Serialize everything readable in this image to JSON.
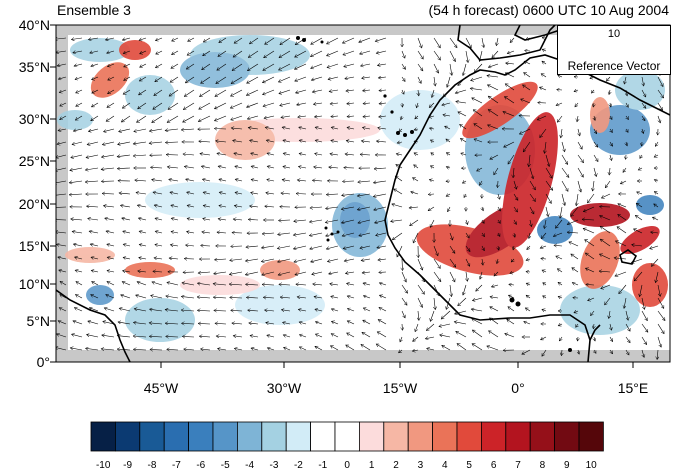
{
  "header": {
    "ensemble_label": "Ensemble 3",
    "forecast_label": "(54 h forecast) 0600 UTC 10 Aug 2004"
  },
  "axes": {
    "y_ticks": [
      "40°N",
      "35°N",
      "30°N",
      "25°N",
      "20°N",
      "15°N",
      "10°N",
      "5°N",
      "0°"
    ],
    "x_ticks": [
      "45°W",
      "30°W",
      "15°W",
      "0°",
      "15°E"
    ]
  },
  "reference_vector": {
    "magnitude": "10",
    "label": "Reference Vector"
  },
  "colorbar": {
    "labels": [
      "-10",
      "-9",
      "-8",
      "-7",
      "-6",
      "-5",
      "-4",
      "-3",
      "-2",
      "-1",
      "0",
      "1",
      "2",
      "3",
      "4",
      "5",
      "6",
      "7",
      "8",
      "9",
      "10"
    ],
    "colors": [
      "#062046",
      "#0b3a72",
      "#195a96",
      "#2a6eb0",
      "#3a7fbd",
      "#5695c8",
      "#7eb4d6",
      "#a4d1e2",
      "#d2ecf7",
      "#ffffff",
      "#ffffff",
      "#fcdcdc",
      "#f6b7a5",
      "#f19880",
      "#ea7358",
      "#e14a3b",
      "#cc2328",
      "#b3141f",
      "#951019",
      "#720a12",
      "#55060a"
    ]
  },
  "map": {
    "ocean_color": "#ffffff",
    "missing_color": "#c8c8c8",
    "coastline_color": "#000000"
  }
}
